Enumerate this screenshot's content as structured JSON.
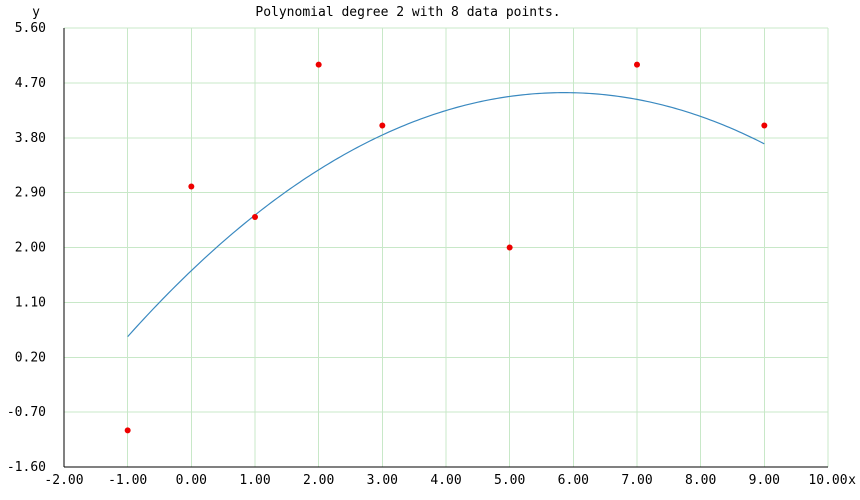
{
  "chart_data": {
    "type": "scatter",
    "title": "Polynomial degree 2 with 8 data points.",
    "xlabel": "x",
    "ylabel": "y",
    "xlim": [
      -2,
      10
    ],
    "ylim": [
      -1.6,
      5.6
    ],
    "x_ticks": [
      -2,
      -1,
      0,
      1,
      2,
      3,
      4,
      5,
      6,
      7,
      8,
      9,
      10
    ],
    "y_ticks": [
      -1.6,
      -0.7,
      0.2,
      1.1,
      2.0,
      2.9,
      3.8,
      4.7,
      5.6
    ],
    "x_tick_labels": [
      "-2.00",
      "-1.00",
      "0.00",
      "1.00",
      "2.00",
      "3.00",
      "4.00",
      "5.00",
      "6.00",
      "7.00",
      "8.00",
      "9.00",
      "10.00"
    ],
    "y_tick_labels": [
      "-1.60",
      "-0.70",
      "0.20",
      "1.10",
      "2.00",
      "2.90",
      "3.80",
      "4.70",
      "5.60"
    ],
    "grid": true,
    "series": [
      {
        "kind": "points",
        "color": "#ee0000",
        "x": [
          -1,
          0,
          1,
          2,
          3,
          5,
          7,
          9
        ],
        "y": [
          -1.0,
          3.0,
          2.5,
          5.0,
          4.0,
          2.0,
          5.0,
          4.0
        ]
      },
      {
        "kind": "fitted-curve",
        "color": "#3a89c0",
        "x_range": [
          -1,
          9
        ],
        "coefficients": [
          1.62,
          0.997,
          -0.0851
        ]
      }
    ],
    "colors": {
      "grid": "#c8e8c8",
      "axis": "#000000",
      "background": "#ffffff"
    }
  }
}
